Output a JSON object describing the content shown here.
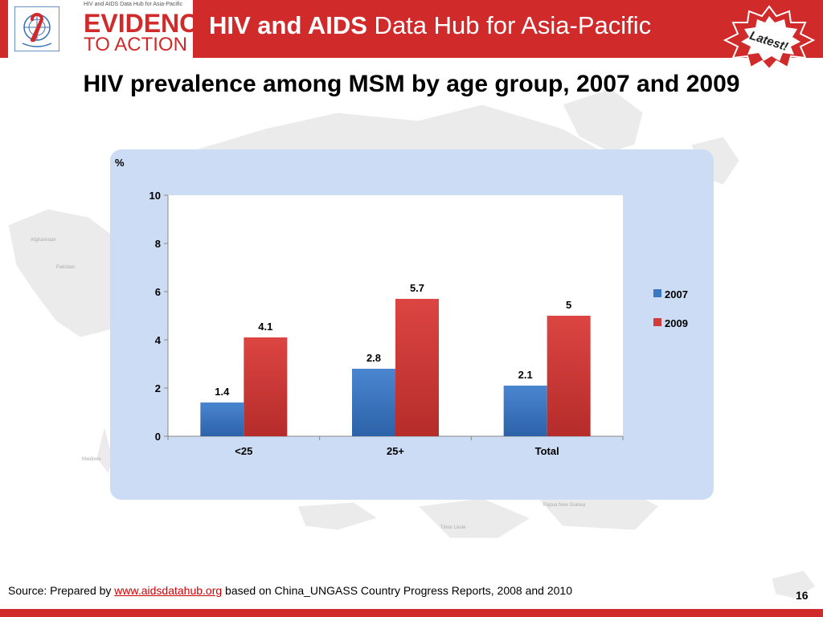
{
  "header": {
    "logo_top": "HIV and AIDS Data Hub for Asia-Pacific",
    "logo_line1": "EVIDENCE",
    "logo_line2": "TO ACTION",
    "title_bold": "HIV and AIDS",
    "title_rest": " Data Hub for Asia-Pacific",
    "badge": "Latest!"
  },
  "slide": {
    "title": "HIV prevalence among MSM by age group, 2007 and 2009",
    "page_number": "16"
  },
  "source": {
    "prefix": "Source: Prepared by ",
    "link": "www.aidsdatahub.org",
    "suffix": "  based on China_UNGASS Country Progress Reports, 2008 and 2010"
  },
  "map_labels": {
    "afghanistan": "Afghanistan",
    "pakistan": "Pakistan",
    "maldives": "Maldives",
    "png": "Papua New Guinea",
    "timor": "Timor Leste"
  },
  "colors": {
    "header_red": "#d12a2a",
    "panel_blue": "#ccdcf4",
    "series_2007": "#3a78c4",
    "series_2009": "#d23c3a"
  },
  "chart_data": {
    "type": "bar",
    "title": "",
    "ylabel": "%",
    "xlabel": "",
    "categories": [
      "<25",
      "25+",
      "Total"
    ],
    "series": [
      {
        "name": "2007",
        "values": [
          1.4,
          2.8,
          2.1
        ],
        "color": "#3a78c4"
      },
      {
        "name": "2009",
        "values": [
          4.1,
          5.7,
          5
        ],
        "color": "#d23c3a"
      }
    ],
    "data_labels": [
      [
        "1.4",
        "2.8",
        "2.1"
      ],
      [
        "4.1",
        "5.7",
        "5"
      ]
    ],
    "yticks": [
      0,
      2,
      4,
      6,
      8,
      10
    ],
    "ylim": [
      0,
      10
    ],
    "grid": false,
    "legend": "right"
  }
}
